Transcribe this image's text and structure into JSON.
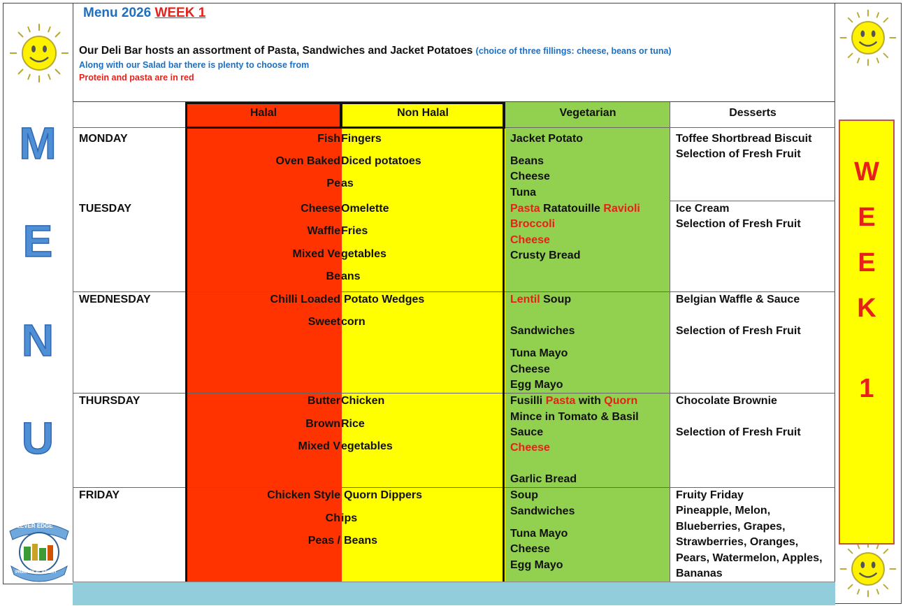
{
  "title": {
    "prefix": "Menu 2026",
    "week": "WEEK 1"
  },
  "intro": {
    "line1": "Our Deli Bar hosts an assortment of Pasta, Sandwiches and Jacket Potatoes",
    "line1_note": "(choice of three fillings: cheese, beans or tuna)",
    "line2": "Along with our Salad bar there is plenty to choose from",
    "line3": "Protein and pasta are in red"
  },
  "side_letters": [
    "M",
    "E",
    "N",
    "U"
  ],
  "week_letters": [
    "W",
    "E",
    "E",
    "K",
    "1"
  ],
  "logo": {
    "top": "LEVER EDGE",
    "bottom": "PRIMARY ACADEMY"
  },
  "columns": {
    "halal": "Halal",
    "non_halal": "Non Halal",
    "vegetarian": "Vegetarian",
    "desserts": "Desserts"
  },
  "colors": {
    "halal": "#ff3300",
    "non_halal": "#ffff00",
    "vegetarian": "#92d050",
    "footer": "#92cddc",
    "week_box": "#ffff00"
  },
  "days": {
    "monday": {
      "name": "MONDAY",
      "mains": [
        [
          "Fish",
          "Fingers"
        ],
        [
          "Oven Baked",
          "Diced potatoes"
        ],
        [
          "Pe",
          "as"
        ]
      ],
      "veg": [
        "Jacket Potato",
        "Beans",
        "Cheese",
        "Tuna"
      ],
      "dessert": [
        "Toffee Shortbread Biscuit",
        "Selection of Fresh Fruit"
      ]
    },
    "tuesday": {
      "name": "TUESDAY",
      "mains": [
        [
          "Cheese",
          "Omelette"
        ],
        [
          "Waffle",
          "Fries"
        ],
        [
          "Mixed Ve",
          "getables"
        ],
        [
          "Be",
          "ans"
        ]
      ],
      "veg": {
        "pasta": "Pasta",
        "ratatouille": "Ratatouille",
        "ravioli": "Ravioli",
        "broccoli": "Broccoli",
        "cheese": "Cheese",
        "bread": "Crusty Bread"
      },
      "dessert": [
        "Ice Cream",
        "Selection of Fresh Fruit"
      ]
    },
    "wednesday": {
      "name": "WEDNESDAY",
      "mains": [
        [
          "Chilli Loaded",
          "Potato Wedges"
        ],
        [
          "Sweet",
          "corn"
        ]
      ],
      "veg": {
        "lentil": "Lentil",
        "soup": "Soup",
        "sandwiches": "Sandwiches",
        "tuna": "Tuna Mayo",
        "cheese": "Cheese",
        "egg": "Egg Mayo"
      },
      "dessert": [
        "Belgian Waffle & Sauce",
        "Selection of Fresh Fruit"
      ]
    },
    "thursday": {
      "name": "THURSDAY",
      "mains": [
        [
          "Butter",
          "Chicken"
        ],
        [
          "Brown",
          "Rice"
        ],
        [
          "Mixed V",
          "egetables"
        ]
      ],
      "veg": {
        "fusilli": "Fusilli",
        "pasta": "Pasta",
        "with": "with",
        "quorn": "Quorn",
        "mince": "Mince in Tomato & Basil",
        "sauce": "Sauce",
        "cheese": "Cheese",
        "bread": "Garlic Bread"
      },
      "dessert": [
        "Chocolate Brownie",
        "Selection of Fresh Fruit"
      ]
    },
    "friday": {
      "name": "FRIDAY",
      "mains": [
        [
          "Chicken Style",
          "Quorn Dippers"
        ],
        [
          "Ch",
          "ips"
        ],
        [
          "Peas /",
          "Beans"
        ]
      ],
      "veg": [
        "Soup",
        "Sandwiches",
        "Tuna Mayo",
        "Cheese",
        "Egg Mayo"
      ],
      "dessert": [
        "Fruity Friday",
        "Pineapple, Melon,",
        "Blueberries, Grapes,",
        "Strawberries, Oranges,",
        "Pears, Watermelon, Apples,",
        "Bananas"
      ]
    }
  }
}
